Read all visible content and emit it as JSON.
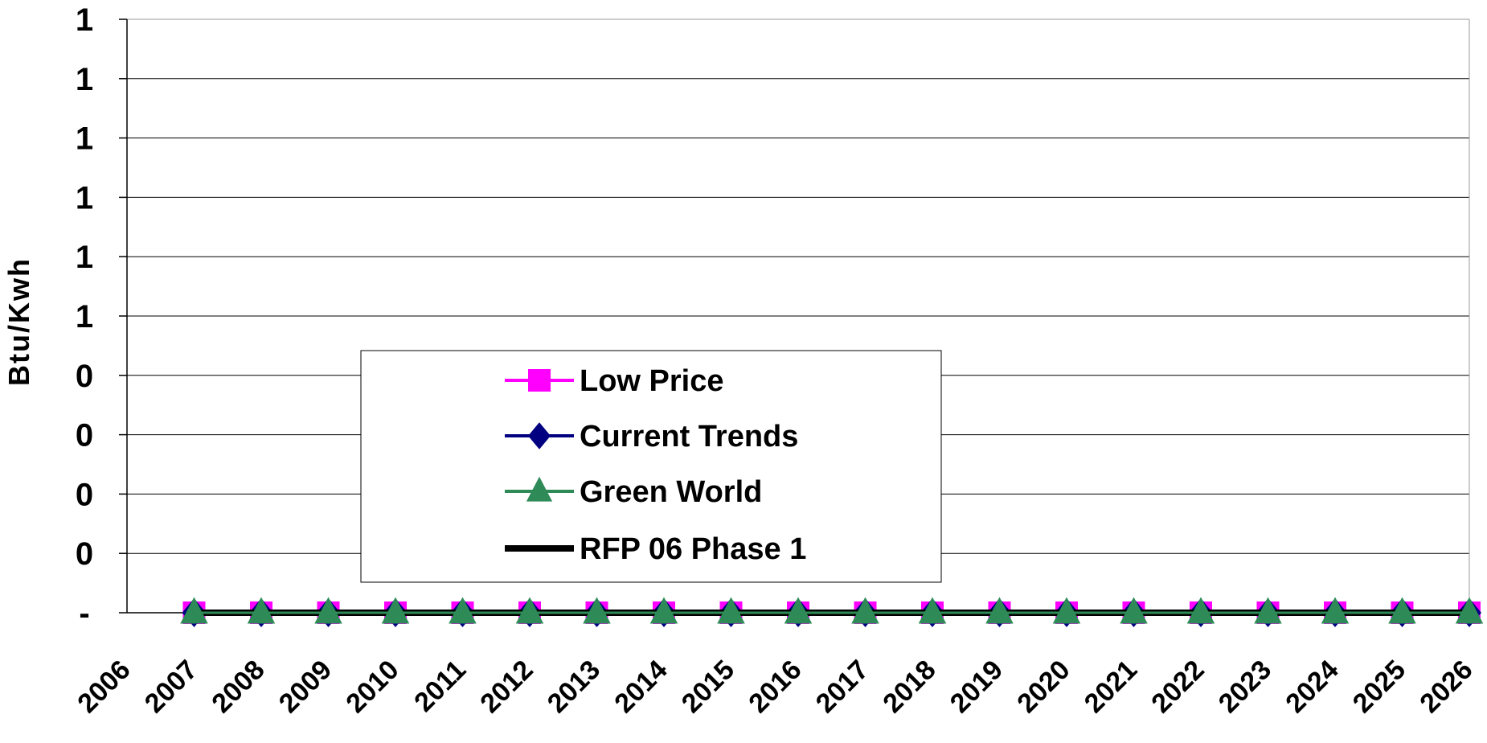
{
  "chart_data": {
    "type": "line",
    "ylabel": "Btu/Kwh",
    "y_tick_labels": [
      "-",
      "0",
      "0",
      "0",
      "0",
      "1",
      "1",
      "1",
      "1",
      "1",
      "1"
    ],
    "y_ticks": [
      0,
      0.1,
      0.2,
      0.3,
      0.4,
      0.5,
      0.6,
      0.7,
      0.8,
      0.9,
      1.0
    ],
    "ylim": [
      0,
      1
    ],
    "grid": true,
    "x_tick_labels": [
      "2006",
      "2007",
      "2008",
      "2009",
      "2010",
      "2011",
      "2012",
      "2013",
      "2014",
      "2015",
      "2016",
      "2017",
      "2018",
      "2019",
      "2020",
      "2021",
      "2022",
      "2023",
      "2024",
      "2025",
      "2026"
    ],
    "x": [
      "2007",
      "2008",
      "2009",
      "2010",
      "2011",
      "2012",
      "2013",
      "2014",
      "2015",
      "2016",
      "2017",
      "2018",
      "2019",
      "2020",
      "2021",
      "2022",
      "2023",
      "2024",
      "2025",
      "2026"
    ],
    "legend_position": "center-left",
    "series": [
      {
        "name": "Low Price",
        "color": "#FF00FF",
        "marker": "square",
        "values": [
          0,
          0,
          0,
          0,
          0,
          0,
          0,
          0,
          0,
          0,
          0,
          0,
          0,
          0,
          0,
          0,
          0,
          0,
          0,
          0
        ]
      },
      {
        "name": "Current Trends",
        "color": "#000080",
        "marker": "diamond",
        "values": [
          0,
          0,
          0,
          0,
          0,
          0,
          0,
          0,
          0,
          0,
          0,
          0,
          0,
          0,
          0,
          0,
          0,
          0,
          0,
          0
        ]
      },
      {
        "name": "Green World",
        "color": "#2E8B57",
        "marker": "triangle",
        "values": [
          0,
          0,
          0,
          0,
          0,
          0,
          0,
          0,
          0,
          0,
          0,
          0,
          0,
          0,
          0,
          0,
          0,
          0,
          0,
          0
        ]
      },
      {
        "name": "RFP 06 Phase 1",
        "color": "#000000",
        "marker": "none",
        "values": [
          0,
          0,
          0,
          0,
          0,
          0,
          0,
          0,
          0,
          0,
          0,
          0,
          0,
          0,
          0,
          0,
          0,
          0,
          0,
          0
        ]
      }
    ]
  }
}
